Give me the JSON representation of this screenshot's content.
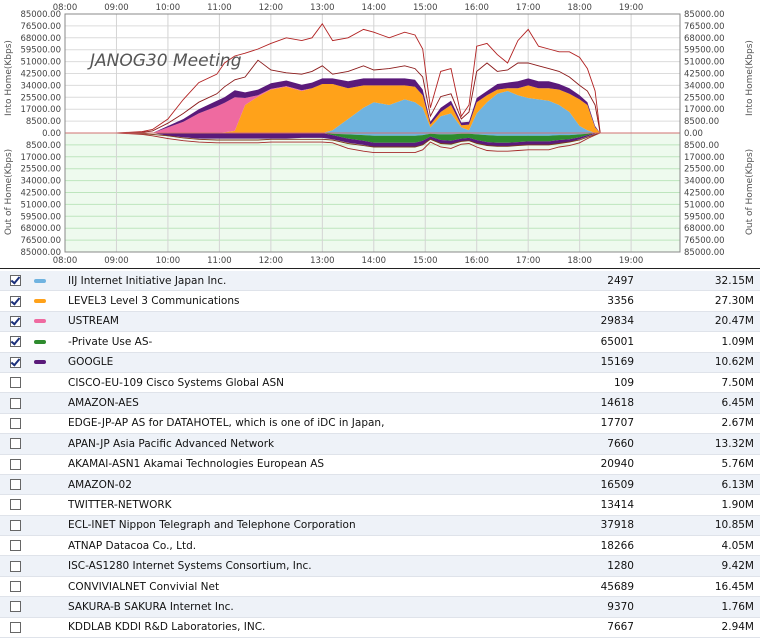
{
  "chart_data": {
    "type": "area",
    "title": "JANOG30 Meeting",
    "ylabel_top": "Into Home(Kbps)",
    "ylabel_bottom": "Out of Home(Kbps)",
    "x_ticks": [
      "08:00",
      "09:00",
      "10:00",
      "11:00",
      "12:00",
      "13:00",
      "14:00",
      "15:00",
      "16:00",
      "17:00",
      "18:00",
      "19:00"
    ],
    "y_ticks": [
      "85000.00",
      "76500.00",
      "68000.00",
      "59500.00",
      "51000.00",
      "42500.00",
      "34000.00",
      "25500.00",
      "17000.00",
      "8500.00",
      "0.00",
      "8500.00",
      "17000.00",
      "25500.00",
      "34000.00",
      "42500.00",
      "51000.00",
      "59500.00",
      "68000.00",
      "76500.00",
      "85000.00"
    ],
    "ylim": [
      -85000,
      85000
    ],
    "xlim_hours": [
      8,
      19.95
    ],
    "x": [
      8.0,
      9.0,
      9.5,
      9.7,
      10.0,
      10.3,
      10.6,
      10.95,
      11.1,
      11.3,
      11.5,
      11.75,
      12.0,
      12.3,
      12.6,
      12.8,
      13.0,
      13.2,
      13.5,
      13.8,
      14.0,
      14.3,
      14.6,
      14.8,
      14.95,
      15.1,
      15.3,
      15.5,
      15.7,
      15.85,
      16.0,
      16.2,
      16.4,
      16.6,
      16.8,
      17.0,
      17.2,
      17.4,
      17.6,
      17.8,
      18.0,
      18.15,
      18.3,
      18.4,
      19.95
    ],
    "series": [
      {
        "name": "IIJ Internet Initiative Japan Inc.",
        "color": "#6fb3e0",
        "values": [
          0,
          0,
          0,
          0,
          0,
          0,
          0,
          0,
          0,
          0,
          0,
          0,
          0,
          0,
          0,
          0,
          0,
          2000,
          10000,
          18000,
          22000,
          20000,
          24000,
          22000,
          18000,
          4000,
          12000,
          14000,
          4000,
          2000,
          14000,
          22000,
          28000,
          30000,
          27000,
          25000,
          24000,
          23000,
          20000,
          15000,
          5000,
          2000,
          0,
          0,
          0
        ]
      },
      {
        "name": "LEVEL3 Level 3 Communications",
        "color": "#ffa21a",
        "values": [
          0,
          0,
          0,
          0,
          0,
          0,
          0,
          0,
          500,
          1500,
          20000,
          26000,
          31000,
          33000,
          30000,
          32000,
          35000,
          33000,
          22000,
          16000,
          12000,
          14000,
          10000,
          11000,
          9000,
          2000,
          3000,
          6000,
          1500,
          4000,
          8000,
          5000,
          3000,
          2000,
          5000,
          9000,
          8000,
          9000,
          11000,
          13000,
          19000,
          18000,
          4000,
          0,
          0
        ]
      },
      {
        "name": "USTREAM",
        "color": "#ef6aa0",
        "values": [
          0,
          0,
          0,
          0,
          4000,
          8000,
          14000,
          19000,
          21000,
          24000,
          5000,
          1000,
          500,
          500,
          500,
          0,
          0,
          0,
          0,
          0,
          0,
          0,
          0,
          0,
          0,
          0,
          0,
          0,
          0,
          0,
          0,
          0,
          0,
          0,
          0,
          0,
          0,
          0,
          0,
          0,
          0,
          0,
          0,
          0,
          0
        ]
      },
      {
        "name": "-Private Use AS-",
        "color": "#2e8b2e",
        "values": [
          0,
          0,
          0,
          0,
          0,
          0,
          0,
          0,
          0,
          0,
          0,
          0,
          0,
          0,
          0,
          0,
          0,
          0,
          0,
          0,
          0,
          0,
          0,
          0,
          0,
          0,
          0,
          0,
          0,
          0,
          0,
          0,
          0,
          0,
          0,
          0,
          0,
          0,
          0,
          0,
          0,
          0,
          0,
          0,
          0
        ]
      },
      {
        "name": "GOOGLE",
        "color": "#5a1a7a",
        "values": [
          0,
          0,
          0,
          0,
          1000,
          2000,
          3000,
          4000,
          4000,
          5000,
          4000,
          4000,
          4000,
          4000,
          4000,
          4000,
          4000,
          4000,
          5000,
          5000,
          5000,
          5000,
          5000,
          5000,
          4000,
          2000,
          3000,
          3000,
          2000,
          2000,
          3000,
          3000,
          4000,
          4000,
          5000,
          5000,
          5000,
          5000,
          4000,
          4000,
          3000,
          2000,
          1000,
          0,
          0
        ]
      }
    ],
    "out_series": [
      {
        "name": "IIJ Internet Initiative Japan Inc.",
        "color": "#6fb3e0",
        "values": [
          0,
          0,
          0,
          0,
          0,
          0,
          0,
          0,
          0,
          0,
          0,
          0,
          0,
          0,
          0,
          0,
          0,
          -500,
          -1000,
          -1500,
          -2000,
          -2000,
          -2000,
          -2000,
          -1500,
          -500,
          -1000,
          -1000,
          -500,
          -500,
          -1000,
          -1500,
          -2000,
          -2000,
          -2000,
          -2000,
          -2000,
          -2000,
          -1500,
          -1500,
          -1000,
          -500,
          0,
          0,
          0
        ]
      },
      {
        "name": "-Private Use AS-",
        "color": "#2e8b2e",
        "values": [
          0,
          0,
          0,
          0,
          0,
          0,
          0,
          0,
          0,
          0,
          0,
          0,
          0,
          0,
          0,
          0,
          0,
          -1000,
          -3000,
          -4000,
          -5000,
          -5000,
          -5000,
          -5000,
          -4000,
          -2000,
          -4000,
          -4500,
          -3500,
          -3000,
          -4000,
          -5000,
          -5000,
          -5000,
          -4500,
          -4000,
          -4000,
          -4000,
          -3500,
          -3000,
          -2000,
          -1000,
          0,
          0,
          0
        ]
      },
      {
        "name": "GOOGLE",
        "color": "#5a1a7a",
        "values": [
          0,
          0,
          0,
          0,
          -2000,
          -3000,
          -4000,
          -4000,
          -4000,
          -4000,
          -4000,
          -4000,
          -4000,
          -4000,
          -3500,
          -3500,
          -3500,
          -3000,
          -3000,
          -3000,
          -3000,
          -3000,
          -3000,
          -3000,
          -3000,
          -2000,
          -2500,
          -2500,
          -2000,
          -2000,
          -2500,
          -2500,
          -2500,
          -2500,
          -2500,
          -2500,
          -2500,
          -2500,
          -2500,
          -2000,
          -1500,
          -1000,
          -500,
          0,
          0
        ]
      }
    ],
    "total_in": [
      0,
      0,
      500,
      1500,
      7000,
      14000,
      22000,
      28000,
      33000,
      38000,
      40000,
      52000,
      45000,
      43000,
      42000,
      44000,
      48000,
      42000,
      44000,
      48000,
      45000,
      46000,
      48000,
      46000,
      40000,
      12000,
      26000,
      28000,
      10000,
      15000,
      44000,
      50000,
      44000,
      45000,
      50000,
      50000,
      48000,
      46000,
      44000,
      40000,
      34000,
      30000,
      20000,
      0,
      0
    ],
    "peak_in": [
      0,
      0,
      1000,
      2500,
      10000,
      24000,
      36000,
      42000,
      50000,
      55000,
      57000,
      60000,
      64000,
      68000,
      66000,
      68000,
      78000,
      66000,
      68000,
      74000,
      72000,
      68000,
      72000,
      70000,
      60000,
      18000,
      44000,
      46000,
      12000,
      20000,
      62000,
      64000,
      56000,
      50000,
      66000,
      74000,
      62000,
      60000,
      58000,
      58000,
      54000,
      46000,
      30000,
      0,
      0
    ],
    "total_out": [
      0,
      0,
      -500,
      -1000,
      -2000,
      -3500,
      -4500,
      -5000,
      -5000,
      -5000,
      -5000,
      -5000,
      -4500,
      -4500,
      -4500,
      -4500,
      -4500,
      -5000,
      -7500,
      -9000,
      -10000,
      -10000,
      -10000,
      -10000,
      -8500,
      -4500,
      -7500,
      -8000,
      -6000,
      -5500,
      -7500,
      -9000,
      -9500,
      -9500,
      -9000,
      -8500,
      -8500,
      -8500,
      -7500,
      -6500,
      -5000,
      -3000,
      -1000,
      0,
      0
    ],
    "peak_out": [
      0,
      0,
      -1000,
      -2000,
      -4000,
      -5500,
      -6500,
      -7000,
      -7000,
      -7000,
      -7000,
      -7000,
      -6500,
      -6500,
      -6500,
      -6500,
      -6500,
      -7000,
      -11000,
      -13000,
      -14000,
      -14000,
      -14000,
      -14000,
      -12000,
      -6500,
      -10000,
      -11000,
      -8000,
      -7500,
      -10000,
      -12500,
      -13000,
      -13000,
      -12500,
      -12000,
      -12000,
      -12000,
      -10000,
      -9000,
      -7000,
      -4000,
      -1500,
      0,
      0
    ]
  },
  "table": {
    "rows": [
      {
        "checked": true,
        "swatch": "#6fb3e0",
        "name": "IIJ Internet Initiative Japan Inc.",
        "asn": "2497",
        "value": "32.15M"
      },
      {
        "checked": true,
        "swatch": "#ffa21a",
        "name": "LEVEL3 Level 3 Communications",
        "asn": "3356",
        "value": "27.30M"
      },
      {
        "checked": true,
        "swatch": "#ef6aa0",
        "name": "USTREAM",
        "asn": "29834",
        "value": "20.47M"
      },
      {
        "checked": true,
        "swatch": "#2e8b2e",
        "name": "-Private Use AS-",
        "asn": "65001",
        "value": "1.09M"
      },
      {
        "checked": true,
        "swatch": "#5a1a7a",
        "name": "GOOGLE",
        "asn": "15169",
        "value": "10.62M"
      },
      {
        "checked": false,
        "swatch": "",
        "name": "CISCO-EU-109 Cisco Systems Global ASN",
        "asn": "109",
        "value": "7.50M"
      },
      {
        "checked": false,
        "swatch": "",
        "name": "AMAZON-AES",
        "asn": "14618",
        "value": "6.45M"
      },
      {
        "checked": false,
        "swatch": "",
        "name": "EDGE-JP-AP AS for DATAHOTEL, which is one of iDC in Japan,",
        "asn": "17707",
        "value": "2.67M"
      },
      {
        "checked": false,
        "swatch": "",
        "name": "APAN-JP Asia Pacific Advanced Network",
        "asn": "7660",
        "value": "13.32M"
      },
      {
        "checked": false,
        "swatch": "",
        "name": "AKAMAI-ASN1 Akamai Technologies European AS",
        "asn": "20940",
        "value": "5.76M"
      },
      {
        "checked": false,
        "swatch": "",
        "name": "AMAZON-02",
        "asn": "16509",
        "value": "6.13M"
      },
      {
        "checked": false,
        "swatch": "",
        "name": "TWITTER-NETWORK",
        "asn": "13414",
        "value": "1.90M"
      },
      {
        "checked": false,
        "swatch": "",
        "name": "ECL-INET Nippon Telegraph and Telephone Corporation",
        "asn": "37918",
        "value": "10.85M"
      },
      {
        "checked": false,
        "swatch": "",
        "name": "ATNAP Datacoa Co., Ltd.",
        "asn": "18266",
        "value": "4.05M"
      },
      {
        "checked": false,
        "swatch": "",
        "name": "ISC-AS1280 Internet Systems Consortium, Inc.",
        "asn": "1280",
        "value": "9.42M"
      },
      {
        "checked": false,
        "swatch": "",
        "name": "CONVIVIALNET Convivial Net",
        "asn": "45689",
        "value": "16.45M"
      },
      {
        "checked": false,
        "swatch": "",
        "name": "SAKURA-B SAKURA Internet Inc.",
        "asn": "9370",
        "value": "1.76M"
      },
      {
        "checked": false,
        "swatch": "",
        "name": "KDDLAB KDDI R&D Laboratories, INC.",
        "asn": "7667",
        "value": "2.94M"
      }
    ]
  }
}
